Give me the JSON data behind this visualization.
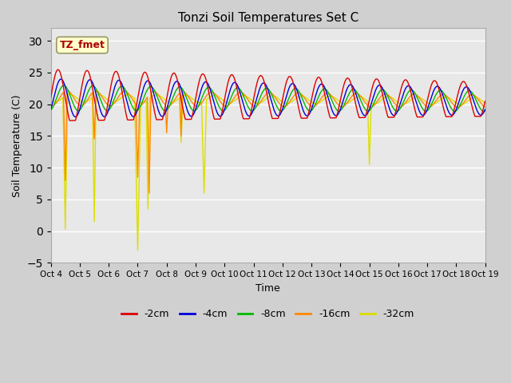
{
  "title": "Tonzi Soil Temperatures Set C",
  "xlabel": "Time",
  "ylabel": "Soil Temperature (C)",
  "ylim": [
    -5,
    32
  ],
  "yticks": [
    -5,
    0,
    5,
    10,
    15,
    20,
    25,
    30
  ],
  "series_colors": {
    "-2cm": "#dd0000",
    "-4cm": "#0000dd",
    "-8cm": "#00bb00",
    "-16cm": "#ff8800",
    "-32cm": "#dddd00"
  },
  "annotation_text": "TZ_fmet",
  "annotation_bg": "#ffffcc",
  "annotation_edge": "#999966",
  "fig_bg": "#d0d0d0",
  "plot_bg": "#e8e8e8",
  "grid_color": "#ffffff",
  "x_tick_labels": [
    "Oct 4",
    "Oct 5",
    "Oct 6",
    "Oct 7",
    "Oct 8",
    "Oct 9",
    "Oct 10",
    "Oct 11",
    "Oct 12",
    "Oct 13",
    "Oct 14",
    "Oct 15",
    "Oct 16",
    "Oct 17",
    "Oct 18",
    "Oct 19"
  ],
  "legend_labels": [
    "-2cm",
    "-4cm",
    "-8cm",
    "-16cm",
    "-32cm"
  ]
}
